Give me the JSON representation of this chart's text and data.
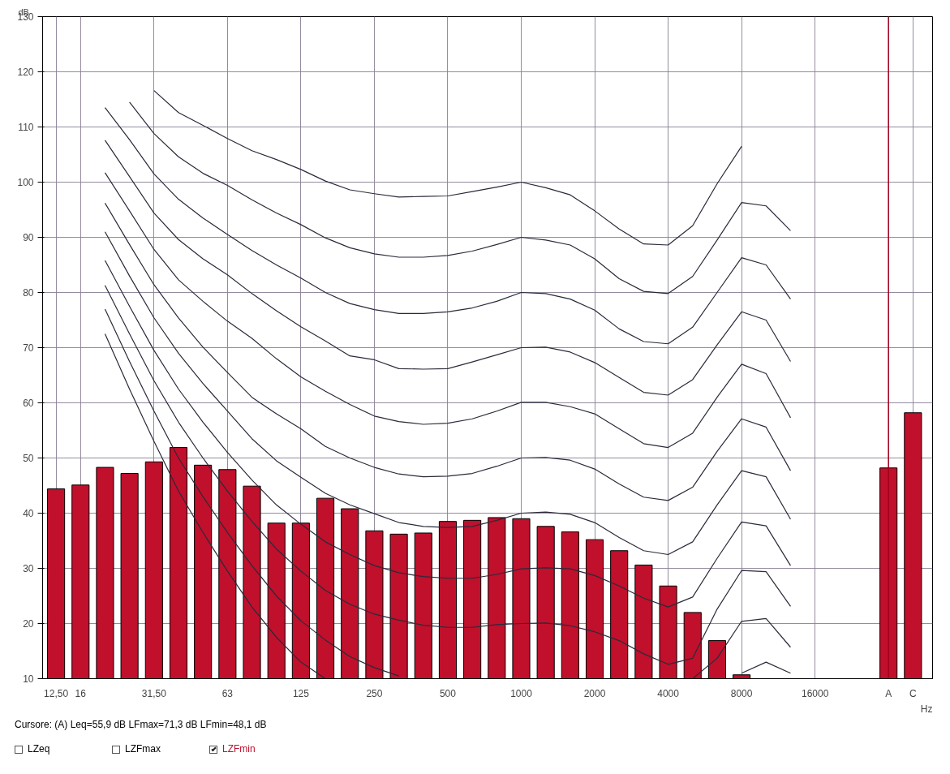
{
  "chart_data": {
    "type": "bar",
    "xlabel": "Hz",
    "ylabel": "dB",
    "categories": [
      "12,50",
      "16",
      null,
      null,
      "31,50",
      null,
      null,
      "63",
      null,
      null,
      "125",
      null,
      null,
      "250",
      null,
      null,
      "500",
      null,
      null,
      "1000",
      null,
      null,
      "2000",
      null,
      null,
      "4000",
      null,
      null,
      "8000",
      null,
      null,
      "16000",
      null,
      null,
      "A",
      "C"
    ],
    "ylim": [
      10,
      130
    ],
    "yticks": [
      10,
      20,
      30,
      40,
      50,
      60,
      70,
      80,
      90,
      100,
      110,
      120,
      130
    ],
    "grid": true,
    "legend": "bottom",
    "marker": "none",
    "line_style": "solid",
    "series": [
      {
        "name": "LZFmin",
        "color": "#c0102c",
        "values": [
          44.4,
          45.1,
          48.3,
          47.2,
          49.3,
          51.9,
          48.7,
          47.9,
          44.9,
          38.2,
          38.2,
          42.7,
          40.8,
          36.8,
          36.2,
          36.4,
          38.5,
          38.7,
          39.2,
          39.0,
          37.6,
          36.6,
          35.2,
          33.2,
          30.6,
          26.8,
          22.0,
          16.9,
          10.7,
          null,
          null,
          null,
          null,
          null,
          48.2,
          58.2
        ]
      },
      {
        "type": "line",
        "color": "#2a2a3a",
        "values": [
          null,
          null,
          null,
          null,
          116.6,
          112.6,
          110.3,
          107.9,
          105.7,
          104.1,
          102.3,
          100.2,
          98.6,
          97.9,
          97.3,
          97.4,
          97.5,
          98.3,
          99.1,
          100,
          99,
          97.7,
          94.8,
          91.5,
          88.8,
          88.6,
          92.1,
          99.7,
          106.5,
          null,
          null,
          null,
          null,
          null,
          null,
          null
        ]
      },
      {
        "type": "line",
        "color": "#2a2a3a",
        "values": [
          null,
          null,
          null,
          114.5,
          108.8,
          104.6,
          101.6,
          99.4,
          96.8,
          94.4,
          92.3,
          89.9,
          88.1,
          87.0,
          86.4,
          86.4,
          86.7,
          87.5,
          88.7,
          90,
          89.5,
          88.6,
          86.1,
          82.5,
          80.2,
          79.8,
          82.9,
          89.5,
          96.3,
          95.7,
          91.2,
          null,
          null,
          null,
          null,
          null
        ]
      },
      {
        "type": "line",
        "color": "#2a2a3a",
        "values": [
          null,
          null,
          113.5,
          107.7,
          101.5,
          96.9,
          93.5,
          90.5,
          87.6,
          85.0,
          82.6,
          80,
          78,
          76.9,
          76.2,
          76.2,
          76.5,
          77.2,
          78.4,
          80,
          79.8,
          78.8,
          76.8,
          73.4,
          71.1,
          70.7,
          73.7,
          80,
          86.3,
          85,
          78.8,
          null,
          null,
          null,
          null,
          null
        ]
      },
      {
        "type": "line",
        "color": "#2a2a3a",
        "values": [
          null,
          null,
          107.6,
          101,
          94.4,
          89.6,
          86.1,
          83.2,
          79.8,
          76.7,
          73.8,
          71.2,
          68.5,
          67.8,
          66.2,
          66.1,
          66.2,
          67.4,
          68.7,
          70,
          70.1,
          69.2,
          67.3,
          64.6,
          61.9,
          61.4,
          64.2,
          70.5,
          76.5,
          75,
          67.5,
          null,
          null,
          null,
          null,
          null
        ]
      },
      {
        "type": "line",
        "color": "#2a2a3a",
        "values": [
          null,
          null,
          101.7,
          94.8,
          87.8,
          82.3,
          78.4,
          74.8,
          71.7,
          68,
          64.7,
          62.1,
          59.7,
          57.6,
          56.6,
          56.1,
          56.3,
          57.1,
          58.5,
          60.1,
          60.1,
          59.3,
          58,
          55.3,
          52.6,
          51.9,
          54.5,
          61,
          67,
          65.3,
          57.3,
          null,
          null,
          null,
          null,
          null
        ]
      },
      {
        "type": "line",
        "color": "#2a2a3a",
        "values": [
          null,
          null,
          96.2,
          88.7,
          81.4,
          75.4,
          70.1,
          65.5,
          61,
          58,
          55.3,
          52.1,
          50,
          48.3,
          47.1,
          46.6,
          46.7,
          47.2,
          48.5,
          50,
          50.1,
          49.6,
          48,
          45.3,
          42.9,
          42.3,
          44.7,
          51.2,
          57.1,
          55.6,
          47.7,
          null,
          null,
          null,
          null,
          null
        ]
      },
      {
        "type": "line",
        "color": "#2a2a3a",
        "values": [
          null,
          null,
          91,
          83,
          75.4,
          69,
          63.5,
          58.5,
          53.5,
          49.5,
          46.5,
          43.6,
          41.5,
          39.9,
          38.3,
          37.6,
          37.4,
          37.6,
          38.7,
          40,
          40.2,
          39.8,
          38.3,
          35.6,
          33.2,
          32.5,
          34.8,
          41.5,
          47.7,
          46.6,
          38.9,
          null,
          null,
          null,
          null,
          null
        ]
      },
      {
        "type": "line",
        "color": "#2a2a3a",
        "values": [
          null,
          null,
          85.8,
          77.5,
          69.5,
          62.5,
          56.5,
          51,
          46,
          41.5,
          38,
          34.8,
          32.5,
          30.5,
          29.2,
          28.5,
          28.2,
          28.2,
          28.9,
          29.9,
          30.1,
          29.9,
          28.7,
          26.8,
          24.6,
          23,
          24.8,
          31.8,
          38.4,
          37.7,
          30.5,
          null,
          null,
          null,
          null,
          null
        ]
      },
      {
        "type": "line",
        "color": "#2a2a3a",
        "values": [
          null,
          null,
          81.3,
          72.5,
          64,
          56.5,
          50,
          44,
          38.5,
          33.5,
          29.5,
          26,
          23.5,
          21.7,
          20.6,
          19.7,
          19.3,
          19.3,
          19.8,
          20,
          20.1,
          19.6,
          18.5,
          16.9,
          14.5,
          12.6,
          13.7,
          22.6,
          29.6,
          29.4,
          23.1,
          null,
          null,
          null,
          null,
          null
        ]
      },
      {
        "type": "line",
        "color": "#2a2a3a",
        "values": [
          null,
          null,
          77,
          67.5,
          58.5,
          50,
          43,
          36.5,
          30.5,
          25,
          20.5,
          17,
          14,
          12,
          10.5,
          null,
          null,
          null,
          null,
          null,
          null,
          null,
          null,
          null,
          null,
          null,
          10,
          13.7,
          20.4,
          20.9,
          15.7,
          null,
          null,
          null,
          null,
          null
        ]
      },
      {
        "type": "line",
        "color": "#2a2a3a",
        "values": [
          null,
          null,
          72.5,
          62.5,
          53,
          44,
          36.5,
          29.5,
          23,
          17.5,
          13,
          10,
          null,
          null,
          null,
          null,
          null,
          null,
          null,
          null,
          null,
          null,
          null,
          null,
          null,
          null,
          null,
          null,
          11,
          13,
          11,
          null,
          null,
          null,
          null,
          null
        ]
      }
    ],
    "ref_lines": [
      {
        "axis": "x",
        "value": "A",
        "color": "#a0001e"
      }
    ],
    "annotations": [
      "Cursore: (A) Leq=55,9 dB  LFmax=71,3 dB  LFmin=48,1 dB",
      "LZeq",
      "LZFmax"
    ]
  }
}
